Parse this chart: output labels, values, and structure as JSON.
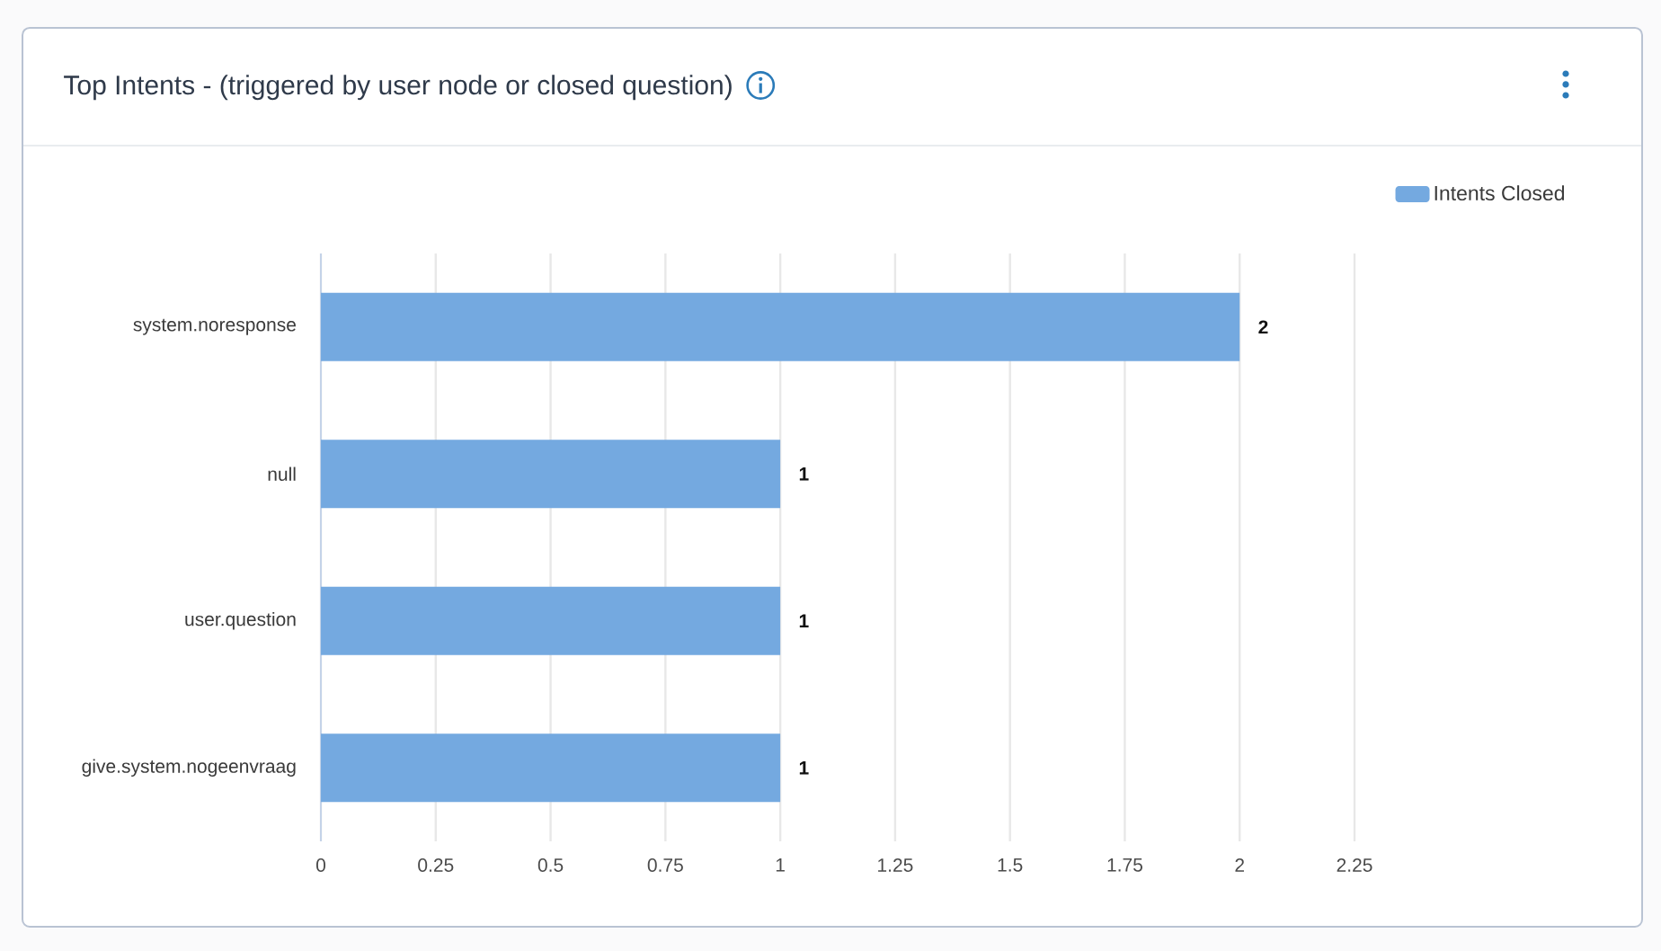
{
  "chart_data": {
    "type": "bar",
    "orientation": "horizontal",
    "title": "Top Intents - (triggered by user node or closed question)",
    "categories": [
      "system.noresponse",
      "null",
      "user.question",
      "give.system.nogeenvraag"
    ],
    "series": [
      {
        "name": "Intents Closed",
        "color": "#74a9e0",
        "values": [
          2,
          1,
          1,
          1
        ]
      }
    ],
    "xlim": [
      0,
      2.25
    ],
    "xticks": [
      0,
      0.25,
      0.5,
      0.75,
      1,
      1.25,
      1.5,
      1.75,
      2,
      2.25
    ],
    "grid": "x",
    "legend": "top right",
    "data_labels": true
  }
}
